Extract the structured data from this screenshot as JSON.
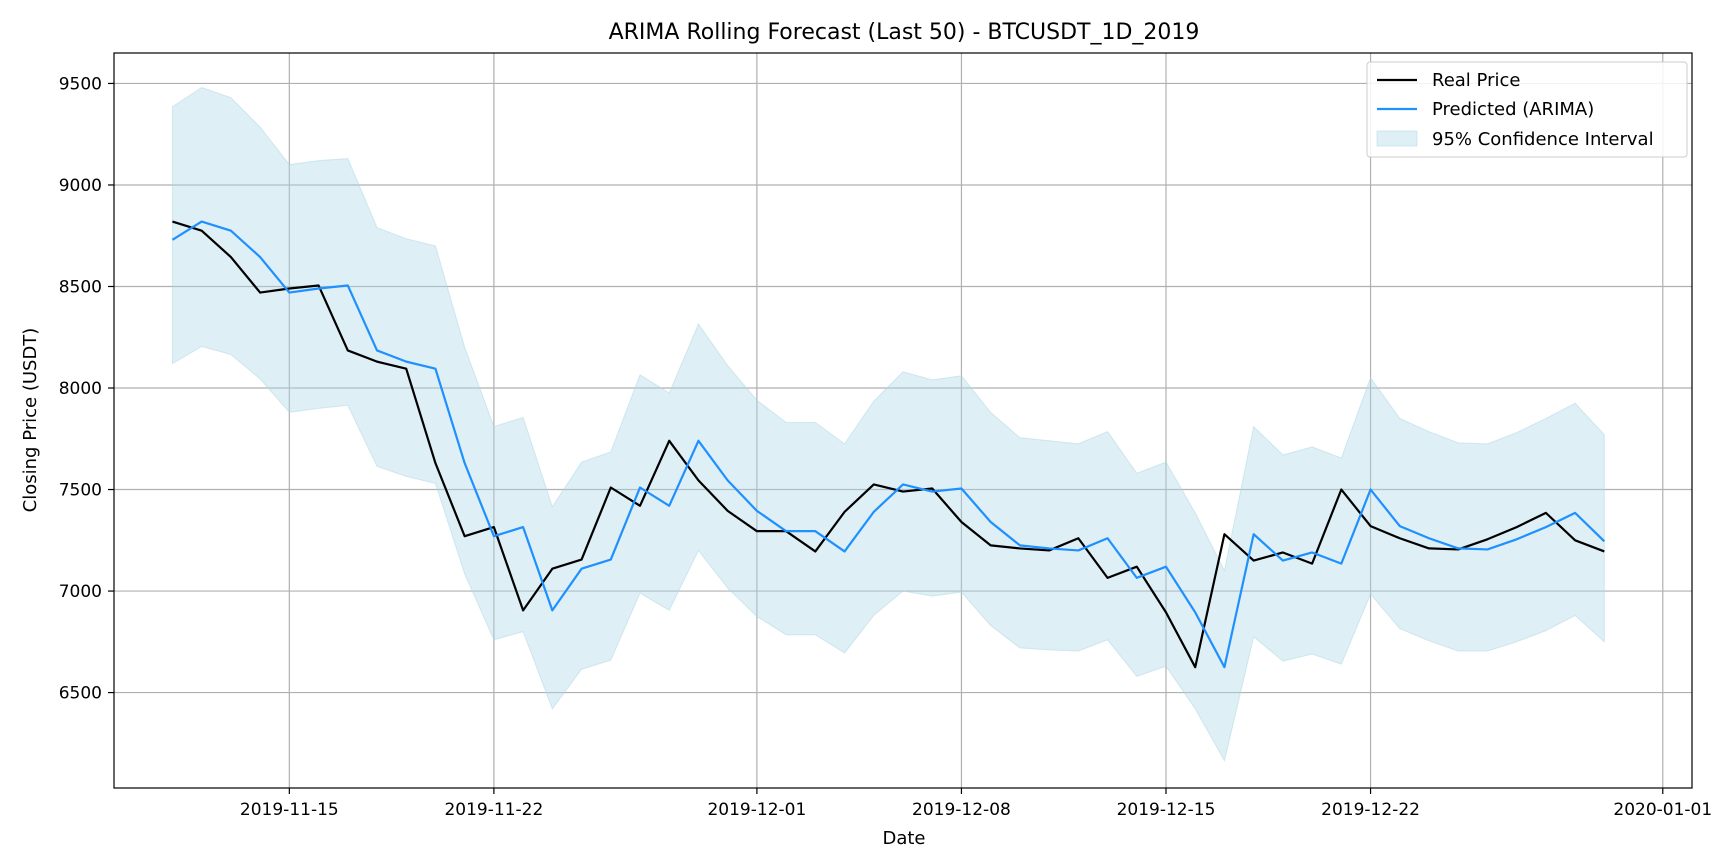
{
  "chart_data": {
    "type": "line",
    "title": "ARIMA Rolling Forecast (Last 50) - BTCUSDT_1D_2019",
    "xlabel": "Date",
    "ylabel": "Closing Price (USDT)",
    "x_start": "2019-11-11",
    "xlim": [
      "2019-11-09",
      "2020-01-02"
    ],
    "ylim": [
      6030,
      9650
    ],
    "x_ticks": [
      "2019-11-15",
      "2019-11-22",
      "2019-12-01",
      "2019-12-08",
      "2019-12-15",
      "2019-12-22",
      "2020-01-01"
    ],
    "y_ticks": [
      6500,
      7000,
      7500,
      8000,
      8500,
      9000,
      9500
    ],
    "grid": true,
    "legend_position": "upper right",
    "colors": {
      "real": "#000000",
      "predicted": "#1E90FF",
      "ci_fill": "#ADD8E6"
    },
    "series": [
      {
        "name": "Real Price",
        "values": [
          8820,
          8775,
          8645,
          8470,
          8490,
          8505,
          8185,
          8130,
          8095,
          7630,
          7270,
          7315,
          6905,
          7110,
          7155,
          7510,
          7420,
          7740,
          7545,
          7395,
          7295,
          7295,
          7195,
          7390,
          7525,
          7490,
          7505,
          7340,
          7225,
          7210,
          7200,
          7260,
          7065,
          7120,
          6895,
          6625,
          7280,
          7150,
          7190,
          7135,
          7500,
          7320,
          7260,
          7210,
          7205,
          7255,
          7315,
          7385,
          7250,
          7195
        ]
      },
      {
        "name": "Predicted (ARIMA)",
        "values": [
          8730,
          8820,
          8775,
          8645,
          8470,
          8490,
          8505,
          8185,
          8130,
          8095,
          7630,
          7270,
          7315,
          6905,
          7110,
          7155,
          7510,
          7420,
          7740,
          7545,
          7395,
          7295,
          7295,
          7195,
          7390,
          7525,
          7490,
          7505,
          7340,
          7225,
          7210,
          7200,
          7260,
          7065,
          7120,
          6895,
          6625,
          7280,
          7150,
          7190,
          7135,
          7500,
          7320,
          7260,
          7210,
          7205,
          7255,
          7315,
          7385,
          7245
        ]
      },
      {
        "name": "95% Confidence Interval",
        "upper": [
          9385,
          9480,
          9430,
          9285,
          9100,
          9120,
          9130,
          8790,
          8735,
          8700,
          8200,
          7810,
          7855,
          7415,
          7635,
          7685,
          8065,
          7975,
          8315,
          8110,
          7940,
          7830,
          7830,
          7725,
          7935,
          8080,
          8040,
          8060,
          7880,
          7755,
          7740,
          7725,
          7785,
          7580,
          7635,
          7385,
          7100,
          7810,
          7670,
          7710,
          7655,
          8050,
          7850,
          7785,
          7730,
          7725,
          7780,
          7850,
          7925,
          7770
        ],
        "lower": [
          8120,
          8205,
          8165,
          8045,
          7880,
          7900,
          7915,
          7615,
          7565,
          7530,
          7085,
          6760,
          6800,
          6420,
          6615,
          6660,
          6990,
          6905,
          7200,
          7015,
          6875,
          6785,
          6785,
          6695,
          6880,
          7000,
          6975,
          6995,
          6830,
          6720,
          6710,
          6705,
          6760,
          6580,
          6630,
          6420,
          6165,
          6775,
          6655,
          6690,
          6640,
          6985,
          6815,
          6755,
          6705,
          6705,
          6750,
          6805,
          6880,
          6750
        ]
      }
    ]
  }
}
